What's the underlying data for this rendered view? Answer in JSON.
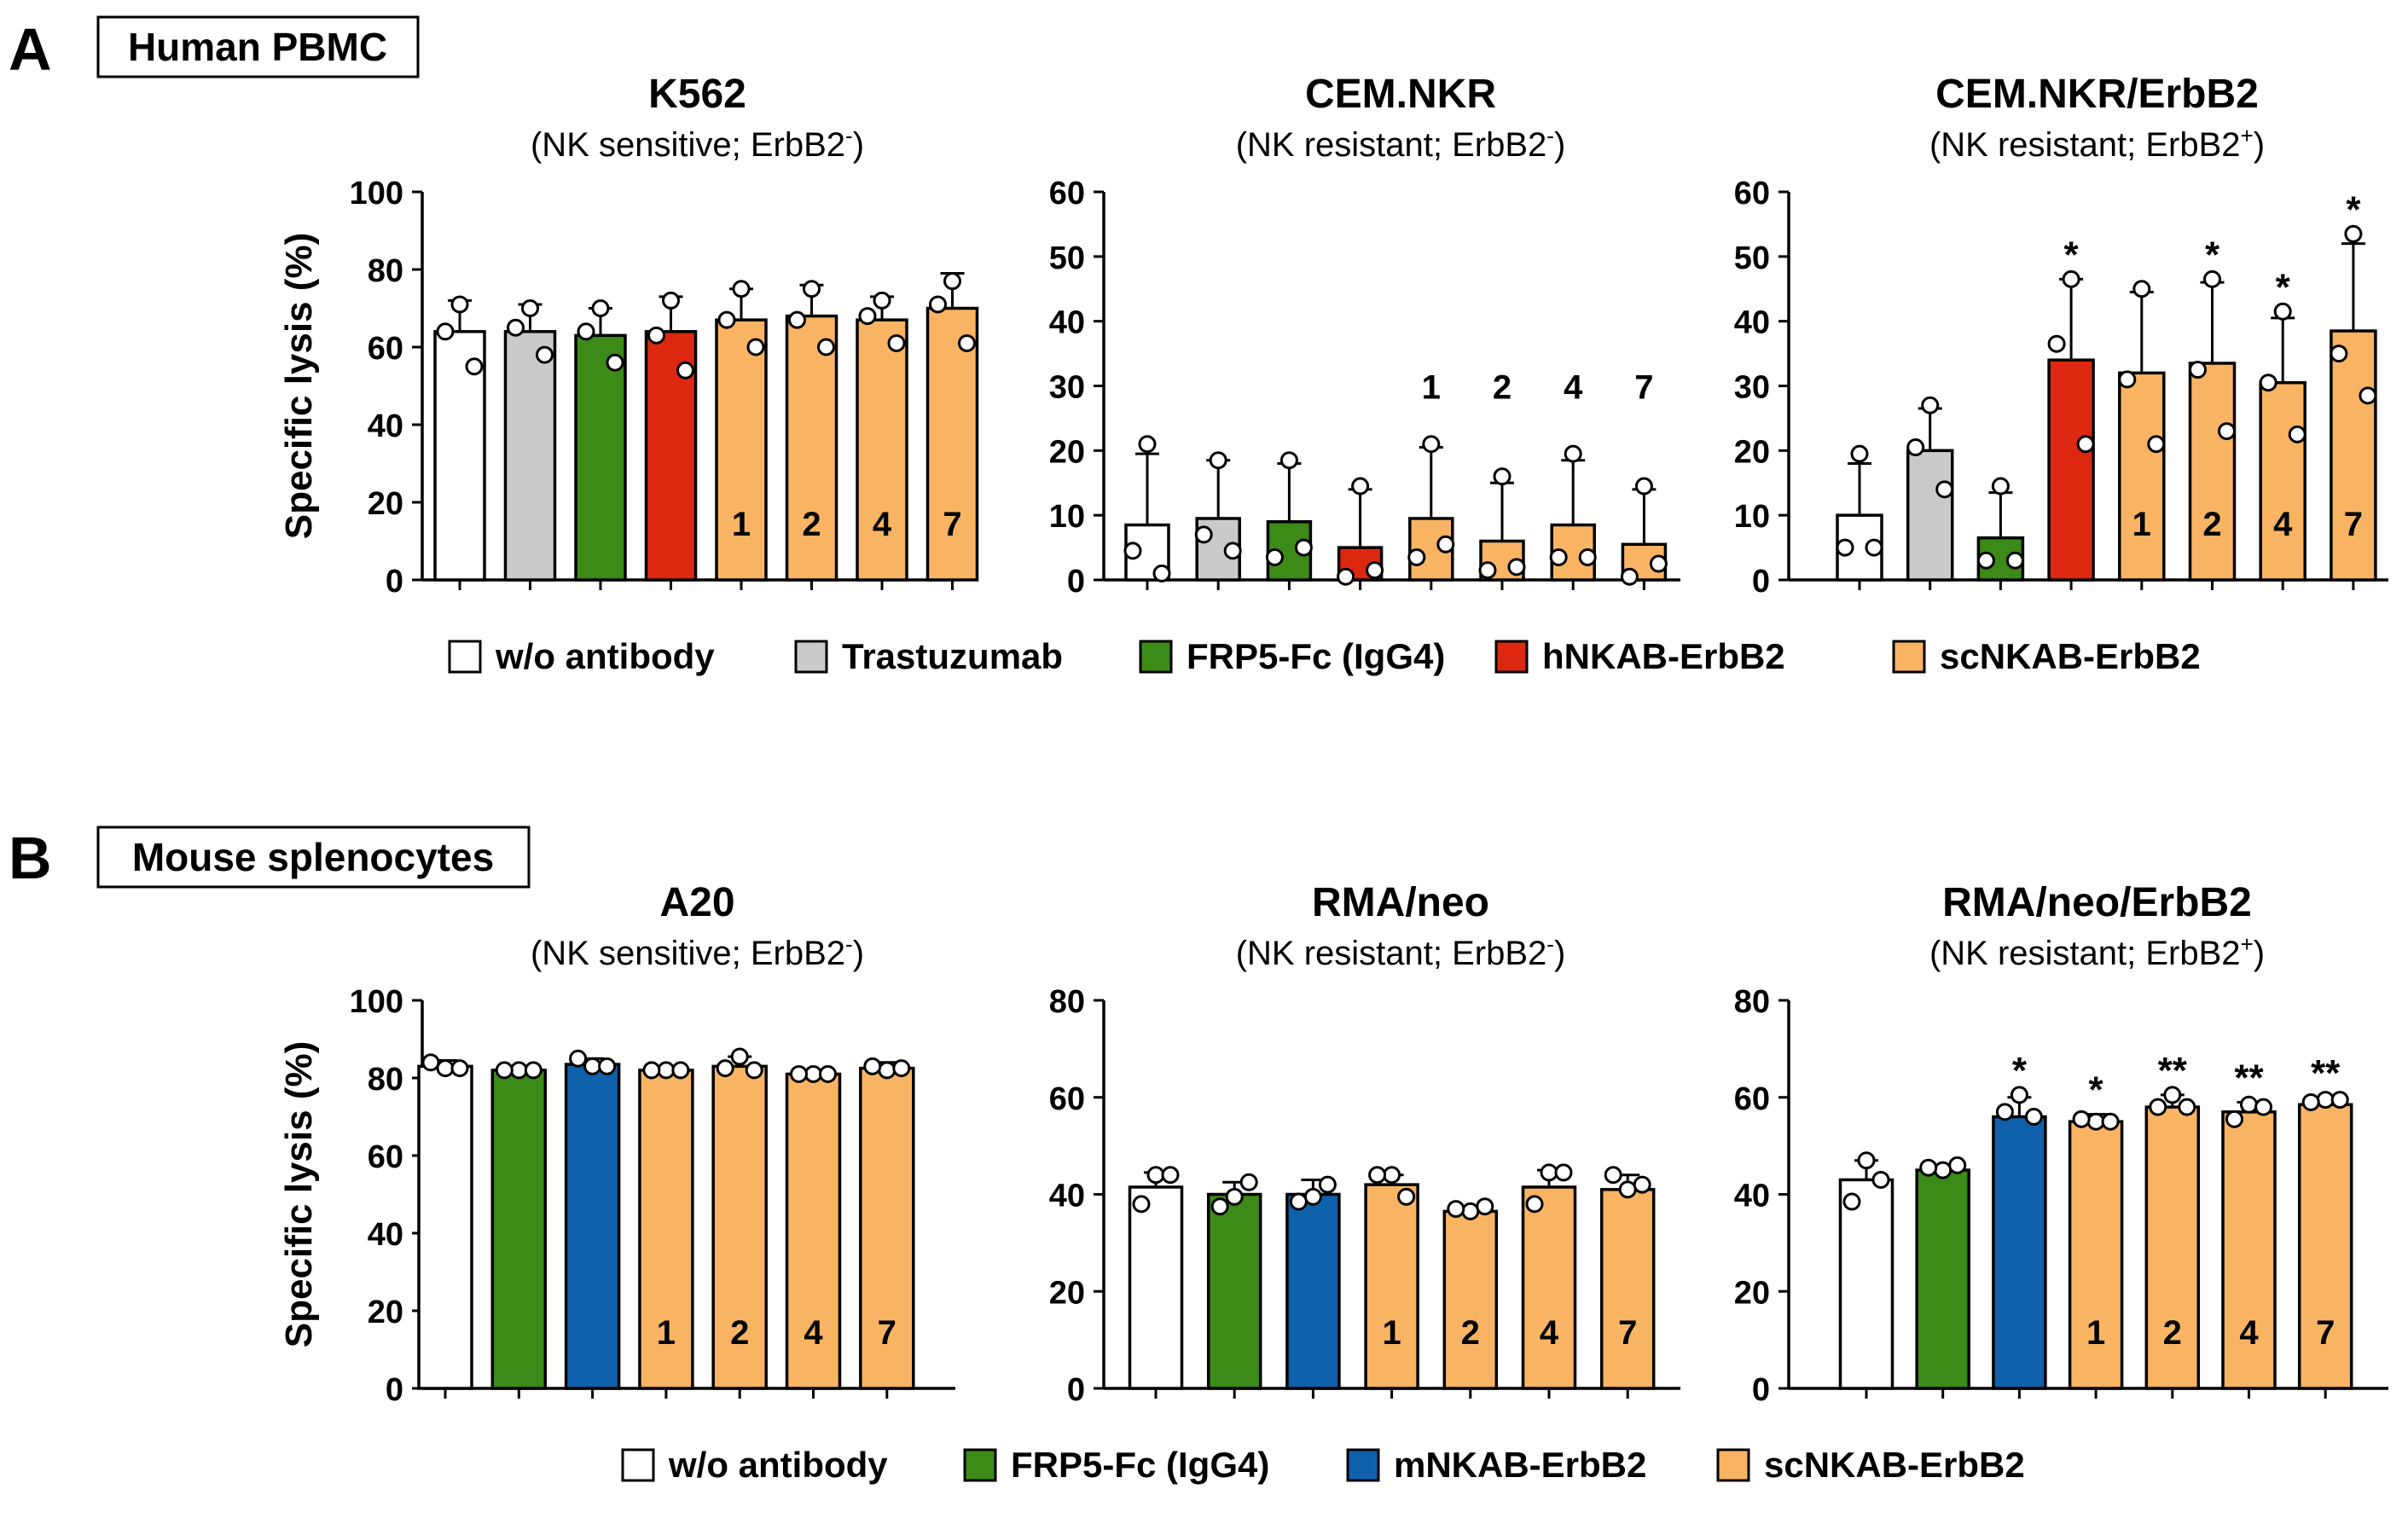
{
  "colors": {
    "none": "#ffffff",
    "trastuzumab": "#c9cbca",
    "frp5": "#3c8a18",
    "hnkab": "#dd2811",
    "mnkab": "#1061ab",
    "scnkab": "#f9b463"
  },
  "panels": [
    {
      "letter": "A",
      "title": "Human PBMC"
    },
    {
      "letter": "B",
      "title": "Mouse splenocytes"
    }
  ],
  "legends": [
    {
      "items": [
        {
          "label": "w/o antibody",
          "color_key": "none"
        },
        {
          "label": "Trastuzumab",
          "color_key": "trastuzumab"
        },
        {
          "label": "FRP5-Fc (IgG4)",
          "color_key": "frp5"
        },
        {
          "label": "hNKAB-ErbB2",
          "color_key": "hnkab"
        },
        {
          "label": "scNKAB-ErbB2",
          "color_key": "scnkab"
        }
      ]
    },
    {
      "items": [
        {
          "label": "w/o antibody",
          "color_key": "none"
        },
        {
          "label": "FRP5-Fc (IgG4)",
          "color_key": "frp5"
        },
        {
          "label": "mNKAB-ErbB2",
          "color_key": "mnkab"
        },
        {
          "label": "scNKAB-ErbB2",
          "color_key": "scnkab"
        }
      ]
    }
  ],
  "chart_data": [
    {
      "type": "bar",
      "panel": "A",
      "title": "K562",
      "subtitle_main": "(NK sensitive; ErbB2",
      "subtitle_sup": "-",
      "subtitle_end": ")",
      "ylabel": "Specific lysis  (%)",
      "ylim": [
        0,
        100
      ],
      "yticks": [
        "0",
        "20",
        "40",
        "60",
        "80",
        "100"
      ],
      "colors": [
        "none",
        "trastuzumab",
        "frp5",
        "hnkab",
        "scnkab",
        "scnkab",
        "scnkab",
        "scnkab"
      ],
      "values": [
        64,
        64,
        63,
        64,
        67,
        68,
        67,
        70
      ],
      "errors": [
        8,
        7,
        7,
        9,
        8,
        8,
        6,
        9
      ],
      "points": [
        [
          71,
          64,
          55
        ],
        [
          70,
          65,
          58
        ],
        [
          70,
          64,
          56
        ],
        [
          72,
          63,
          54
        ],
        [
          75,
          67,
          60
        ],
        [
          75,
          67,
          60
        ],
        [
          72,
          68,
          61
        ],
        [
          77,
          71,
          61
        ]
      ],
      "labels": [
        "",
        "",
        "",
        "",
        "1",
        "2",
        "4",
        "7"
      ],
      "label_pos": "inside",
      "stars": [
        "",
        "",
        "",
        "",
        "",
        "",
        "",
        ""
      ]
    },
    {
      "type": "bar",
      "panel": "A",
      "title": "CEM.NKR",
      "subtitle_main": "(NK resistant; ErbB2",
      "subtitle_sup": "-",
      "subtitle_end": ")",
      "ylabel": "",
      "ylim": [
        0,
        60
      ],
      "yticks": [
        "0",
        "10",
        "20",
        "30",
        "40",
        "50",
        "60"
      ],
      "colors": [
        "none",
        "trastuzumab",
        "frp5",
        "hnkab",
        "scnkab",
        "scnkab",
        "scnkab",
        "scnkab"
      ],
      "values": [
        8.5,
        9.5,
        9,
        5,
        9.5,
        6,
        8.5,
        5.5
      ],
      "errors": [
        11,
        9,
        9,
        9,
        11,
        9,
        10,
        8.5
      ],
      "points": [
        [
          21,
          4.5,
          1
        ],
        [
          18.5,
          7,
          4.5
        ],
        [
          18.5,
          3.5,
          5
        ],
        [
          14.5,
          0.5,
          1.5
        ],
        [
          21,
          3.5,
          5.5
        ],
        [
          16,
          1.5,
          2
        ],
        [
          19.5,
          3.5,
          3.5
        ],
        [
          14.5,
          0.5,
          2.5
        ]
      ],
      "labels": [
        "",
        "",
        "",
        "",
        "1",
        "2",
        "4",
        "7"
      ],
      "label_pos": "above",
      "stars": [
        "",
        "",
        "",
        "",
        "",
        "",
        "",
        ""
      ]
    },
    {
      "type": "bar",
      "panel": "A",
      "title": "CEM.NKR/ErbB2",
      "subtitle_main": "(NK resistant; ErbB2",
      "subtitle_sup": "+",
      "subtitle_end": ")",
      "ylabel": "",
      "ylim": [
        0,
        60
      ],
      "yticks": [
        "0",
        "10",
        "20",
        "30",
        "40",
        "50",
        "60"
      ],
      "colors": [
        "none",
        "trastuzumab",
        "frp5",
        "hnkab",
        "scnkab",
        "scnkab",
        "scnkab",
        "scnkab"
      ],
      "values": [
        10,
        20,
        6.5,
        34,
        32,
        33.5,
        30.5,
        38.5
      ],
      "errors": [
        8,
        6.5,
        7,
        12.5,
        12.5,
        12.5,
        10,
        13.5
      ],
      "points": [
        [
          19.5,
          5,
          5
        ],
        [
          27,
          20.5,
          14
        ],
        [
          14.5,
          3,
          3
        ],
        [
          46.5,
          36.5,
          21
        ],
        [
          45,
          31,
          21
        ],
        [
          46.5,
          32.5,
          23
        ],
        [
          41.5,
          30.5,
          22.5
        ],
        [
          53.5,
          35,
          28.5
        ]
      ],
      "labels": [
        "",
        "",
        "",
        "",
        "1",
        "2",
        "4",
        "7"
      ],
      "label_pos": "inside",
      "stars": [
        "",
        "",
        "",
        "*",
        "",
        "*",
        "*",
        "*"
      ]
    },
    {
      "type": "bar",
      "panel": "B",
      "title": "A20",
      "subtitle_main": "(NK sensitive; ErbB2",
      "subtitle_sup": "-",
      "subtitle_end": ")",
      "ylabel": "Specific lysis  (%)",
      "ylim": [
        0,
        100
      ],
      "yticks": [
        "0",
        "20",
        "40",
        "60",
        "80",
        "100"
      ],
      "colors": [
        "none",
        "frp5",
        "mnkab",
        "scnkab",
        "scnkab",
        "scnkab",
        "scnkab"
      ],
      "values": [
        83,
        82,
        83.5,
        82,
        83,
        81,
        82.5
      ],
      "errors": [
        1.5,
        1,
        1.5,
        1,
        2.5,
        1,
        1.5
      ],
      "points": [
        [
          82.5,
          84,
          82.5
        ],
        [
          82,
          82,
          82
        ],
        [
          83,
          85,
          83
        ],
        [
          82,
          82,
          82
        ],
        [
          85.5,
          82.5,
          82
        ],
        [
          81,
          81,
          81
        ],
        [
          82,
          83,
          82.5
        ]
      ],
      "labels": [
        "",
        "",
        "",
        "1",
        "2",
        "4",
        "7"
      ],
      "label_pos": "inside",
      "stars": [
        "",
        "",
        "",
        "",
        "",
        "",
        ""
      ]
    },
    {
      "type": "bar",
      "panel": "B",
      "title": "RMA/neo",
      "subtitle_main": "(NK resistant; ErbB2",
      "subtitle_sup": "-",
      "subtitle_end": ")",
      "ylabel": "",
      "ylim": [
        0,
        80
      ],
      "yticks": [
        "0",
        "20",
        "40",
        "60",
        "80"
      ],
      "colors": [
        "none",
        "frp5",
        "mnkab",
        "scnkab",
        "scnkab",
        "scnkab",
        "scnkab"
      ],
      "values": [
        41.5,
        40,
        40,
        42,
        36.5,
        41.5,
        41
      ],
      "errors": [
        3,
        2.5,
        3,
        2,
        1,
        3.5,
        3
      ],
      "points": [
        [
          44,
          38,
          44
        ],
        [
          39.5,
          37.5,
          42.5
        ],
        [
          39.5,
          38.5,
          42
        ],
        [
          44,
          44,
          39.5
        ],
        [
          36.5,
          37,
          37.5
        ],
        [
          44.5,
          38,
          44.5
        ],
        [
          41,
          44,
          42
        ]
      ],
      "labels": [
        "",
        "",
        "",
        "1",
        "2",
        "4",
        "7"
      ],
      "label_pos": "inside",
      "stars": [
        "",
        "",
        "",
        "",
        "",
        "",
        ""
      ]
    },
    {
      "type": "bar",
      "panel": "B",
      "title": "RMA/neo/ErbB2",
      "subtitle_main": "(NK resistant; ErbB2",
      "subtitle_sup": "+",
      "subtitle_end": ")",
      "ylabel": "",
      "ylim": [
        0,
        80
      ],
      "yticks": [
        "0",
        "20",
        "40",
        "60",
        "80"
      ],
      "colors": [
        "none",
        "frp5",
        "mnkab",
        "scnkab",
        "scnkab",
        "scnkab",
        "scnkab"
      ],
      "values": [
        43,
        45,
        56,
        55,
        58,
        57,
        58.5
      ],
      "errors": [
        4,
        1,
        4,
        1.5,
        2.5,
        2,
        1.5
      ],
      "points": [
        [
          47,
          38.5,
          43
        ],
        [
          45,
          45.5,
          46
        ],
        [
          60.5,
          57,
          56
        ],
        [
          55,
          55.5,
          55
        ],
        [
          60.5,
          58,
          58
        ],
        [
          58.5,
          55.5,
          58
        ],
        [
          59.5,
          59,
          59.5
        ]
      ],
      "labels": [
        "",
        "",
        "",
        "1",
        "2",
        "4",
        "7"
      ],
      "label_pos": "inside",
      "stars": [
        "",
        "",
        "*",
        "*",
        "**",
        "**",
        "**"
      ]
    }
  ]
}
